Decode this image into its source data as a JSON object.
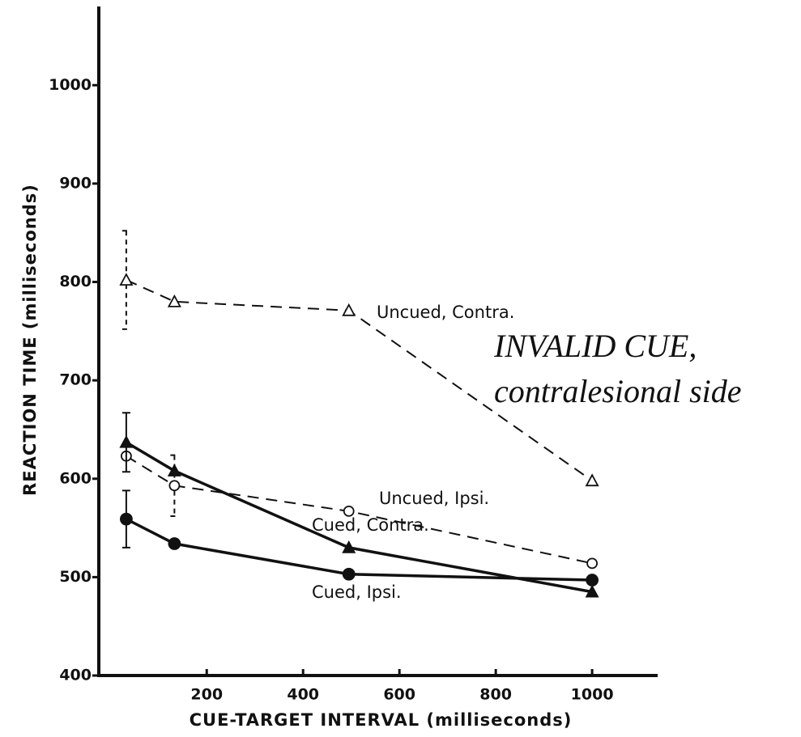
{
  "chart_data": {
    "type": "line",
    "xlabel": "CUE-TARGET INTERVAL (milliseconds)",
    "ylabel": "REACTION TIME (milliseconds)",
    "annotation": [
      "INVALID CUE,",
      "contralesional side"
    ],
    "x": [
      33,
      133,
      495,
      1000
    ],
    "xlim": [
      -24,
      1136
    ],
    "xticks": [
      200,
      400,
      600,
      800,
      1000
    ],
    "ylim": [
      400,
      1080
    ],
    "yticks": [
      400,
      500,
      600,
      700,
      800,
      900,
      1000
    ],
    "series": [
      {
        "name": "Uncued, Contra.",
        "color": "#111111",
        "dashed": true,
        "marker": "triangle",
        "filled": false,
        "values": [
          802,
          780,
          771,
          598
        ],
        "errors": [
          50,
          null,
          null,
          null
        ]
      },
      {
        "name": "Uncued, Ipsi.",
        "color": "#111111",
        "dashed": true,
        "marker": "circle",
        "filled": false,
        "values": [
          623,
          593,
          567,
          514
        ],
        "errors": [
          null,
          31,
          null,
          null
        ]
      },
      {
        "name": "Cued, Contra.",
        "color": "#111111",
        "dashed": false,
        "marker": "triangle",
        "filled": true,
        "values": [
          637,
          608,
          530,
          485
        ],
        "errors": [
          30,
          null,
          null,
          null
        ]
      },
      {
        "name": "Cued, Ipsi.",
        "color": "#111111",
        "dashed": false,
        "marker": "circle",
        "filled": true,
        "values": [
          559,
          534,
          503,
          497
        ],
        "errors": [
          29,
          null,
          null,
          null
        ]
      }
    ]
  }
}
